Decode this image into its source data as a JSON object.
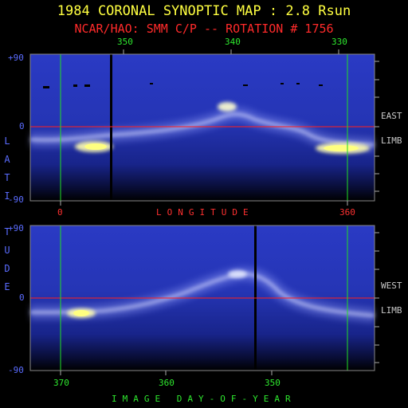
{
  "header": {
    "title": "1984 CORONAL SYNOPTIC MAP : 2.8 Rsun",
    "subtitle": "NCAR/HAO: SMM C/P -- ROTATION # 1756"
  },
  "top_panel": {
    "top_ticks": [
      "350",
      "340",
      "330"
    ],
    "y_ticks": [
      "+90",
      "0",
      "-90"
    ],
    "side_labels": [
      "EAST",
      "LIMB"
    ],
    "bottom_ticks": [
      "0",
      "360"
    ],
    "bottom_axis_label": "LONGITUDE"
  },
  "bottom_panel": {
    "y_ticks": [
      "+90",
      "0",
      "-90"
    ],
    "side_labels": [
      "WEST",
      "LIMB"
    ],
    "bottom_ticks": [
      "370",
      "360",
      "350"
    ],
    "bottom_axis_label": "IMAGE DAY-OF-YEAR"
  },
  "y_axis_label": [
    "L",
    "A",
    "T",
    "I",
    "T",
    "U",
    "D",
    "E"
  ],
  "colors": {
    "title": "#ffff40",
    "subtitle": "#ff2a2a",
    "longitude_ticks": "#2ee82e",
    "latitude_ticks": "#5a6cff",
    "equator_line": "#ff2020",
    "marker_line": "#22dd22",
    "map_background": "#1c2ea0"
  }
}
